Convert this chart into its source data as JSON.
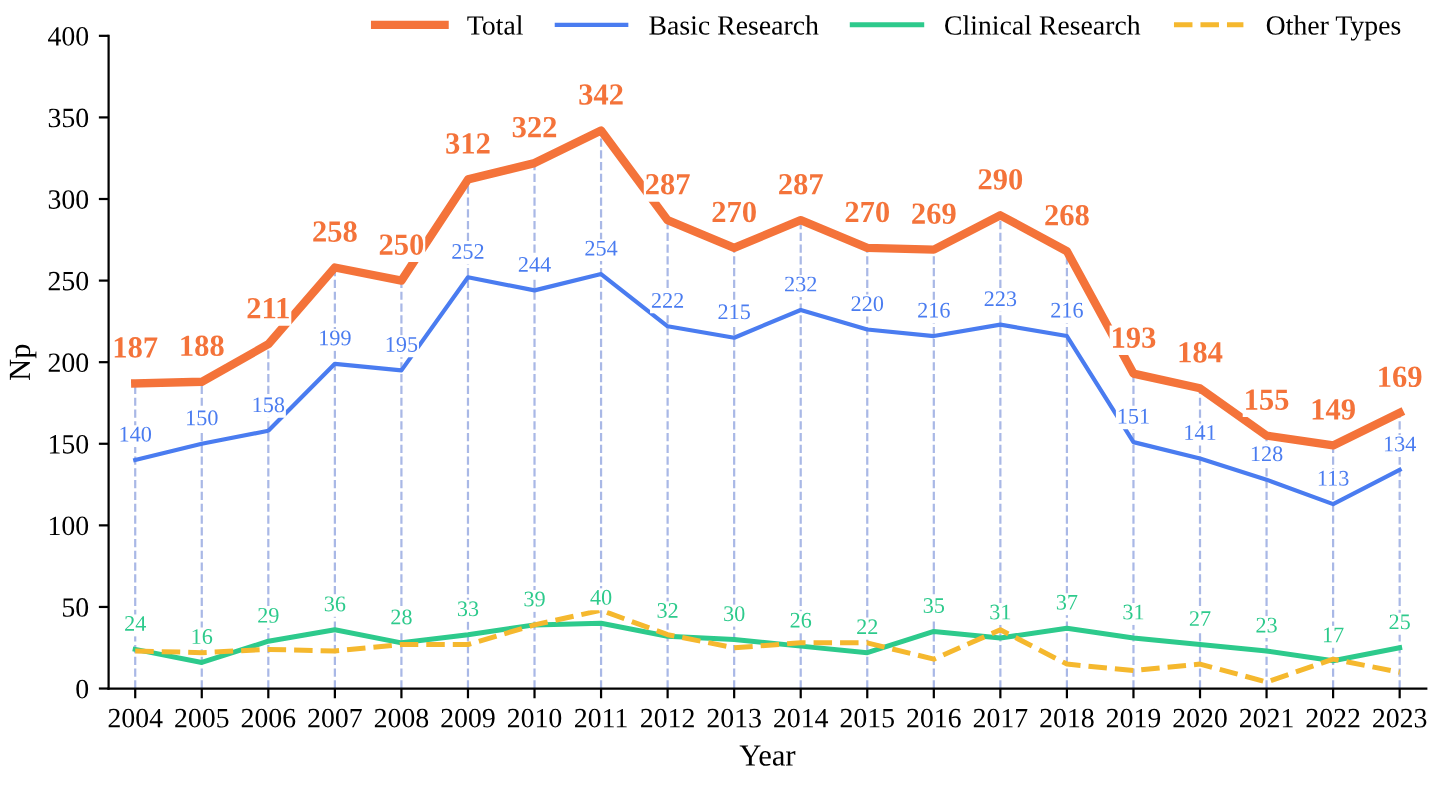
{
  "chart_data": {
    "type": "line",
    "xlabel": "Year",
    "ylabel": "Np",
    "categories": [
      "2004",
      "2005",
      "2006",
      "2007",
      "2008",
      "2009",
      "2010",
      "2011",
      "2012",
      "2013",
      "2014",
      "2015",
      "2016",
      "2017",
      "2018",
      "2019",
      "2020",
      "2021",
      "2022",
      "2023"
    ],
    "ylim": [
      0,
      400
    ],
    "yticks": [
      0,
      50,
      100,
      150,
      200,
      250,
      300,
      350,
      400
    ],
    "grid": "x",
    "legend": "top right",
    "series": [
      {
        "name": "Total",
        "color": "#f4733a",
        "line_style": "solid",
        "values": [
          187,
          188,
          211,
          258,
          250,
          312,
          322,
          342,
          287,
          270,
          287,
          270,
          269,
          290,
          268,
          193,
          184,
          155,
          149,
          169
        ],
        "value_labels": [
          "187",
          "188",
          "211",
          "258",
          "250",
          "312",
          "322",
          "342",
          "287",
          "270",
          "287",
          "270",
          "269",
          "290",
          "268",
          "193",
          "184",
          "155",
          "149",
          "169"
        ]
      },
      {
        "name": "Basic Research",
        "color": "#4a7cf0",
        "line_style": "solid",
        "values": [
          140,
          150,
          158,
          199,
          195,
          252,
          244,
          254,
          222,
          215,
          232,
          220,
          216,
          223,
          216,
          151,
          141,
          128,
          113,
          134
        ],
        "value_labels": [
          "140",
          "150",
          "158",
          "199",
          "195",
          "252",
          "244",
          "254",
          "222",
          "215",
          "232",
          "220",
          "216",
          "223",
          "216",
          "151",
          "141",
          "128",
          "113",
          "134"
        ]
      },
      {
        "name": "Clinical Research",
        "color": "#2dca8c",
        "line_style": "solid",
        "values": [
          24,
          16,
          29,
          36,
          28,
          33,
          39,
          40,
          32,
          30,
          26,
          22,
          35,
          31,
          37,
          31,
          27,
          23,
          17,
          25
        ],
        "value_labels": [
          "24",
          "16",
          "29",
          "36",
          "28",
          "33",
          "39",
          "40",
          "32",
          "30",
          "26",
          "22",
          "35",
          "31",
          "37",
          "31",
          "27",
          "23",
          "17",
          "25"
        ]
      },
      {
        "name": "Other Types",
        "color": "#f5b82e",
        "line_style": "dashed",
        "values": [
          23,
          22,
          24,
          23,
          27,
          27,
          39,
          48,
          33,
          25,
          28,
          28,
          18,
          36,
          15,
          11,
          15,
          4,
          18,
          10
        ]
      }
    ]
  }
}
